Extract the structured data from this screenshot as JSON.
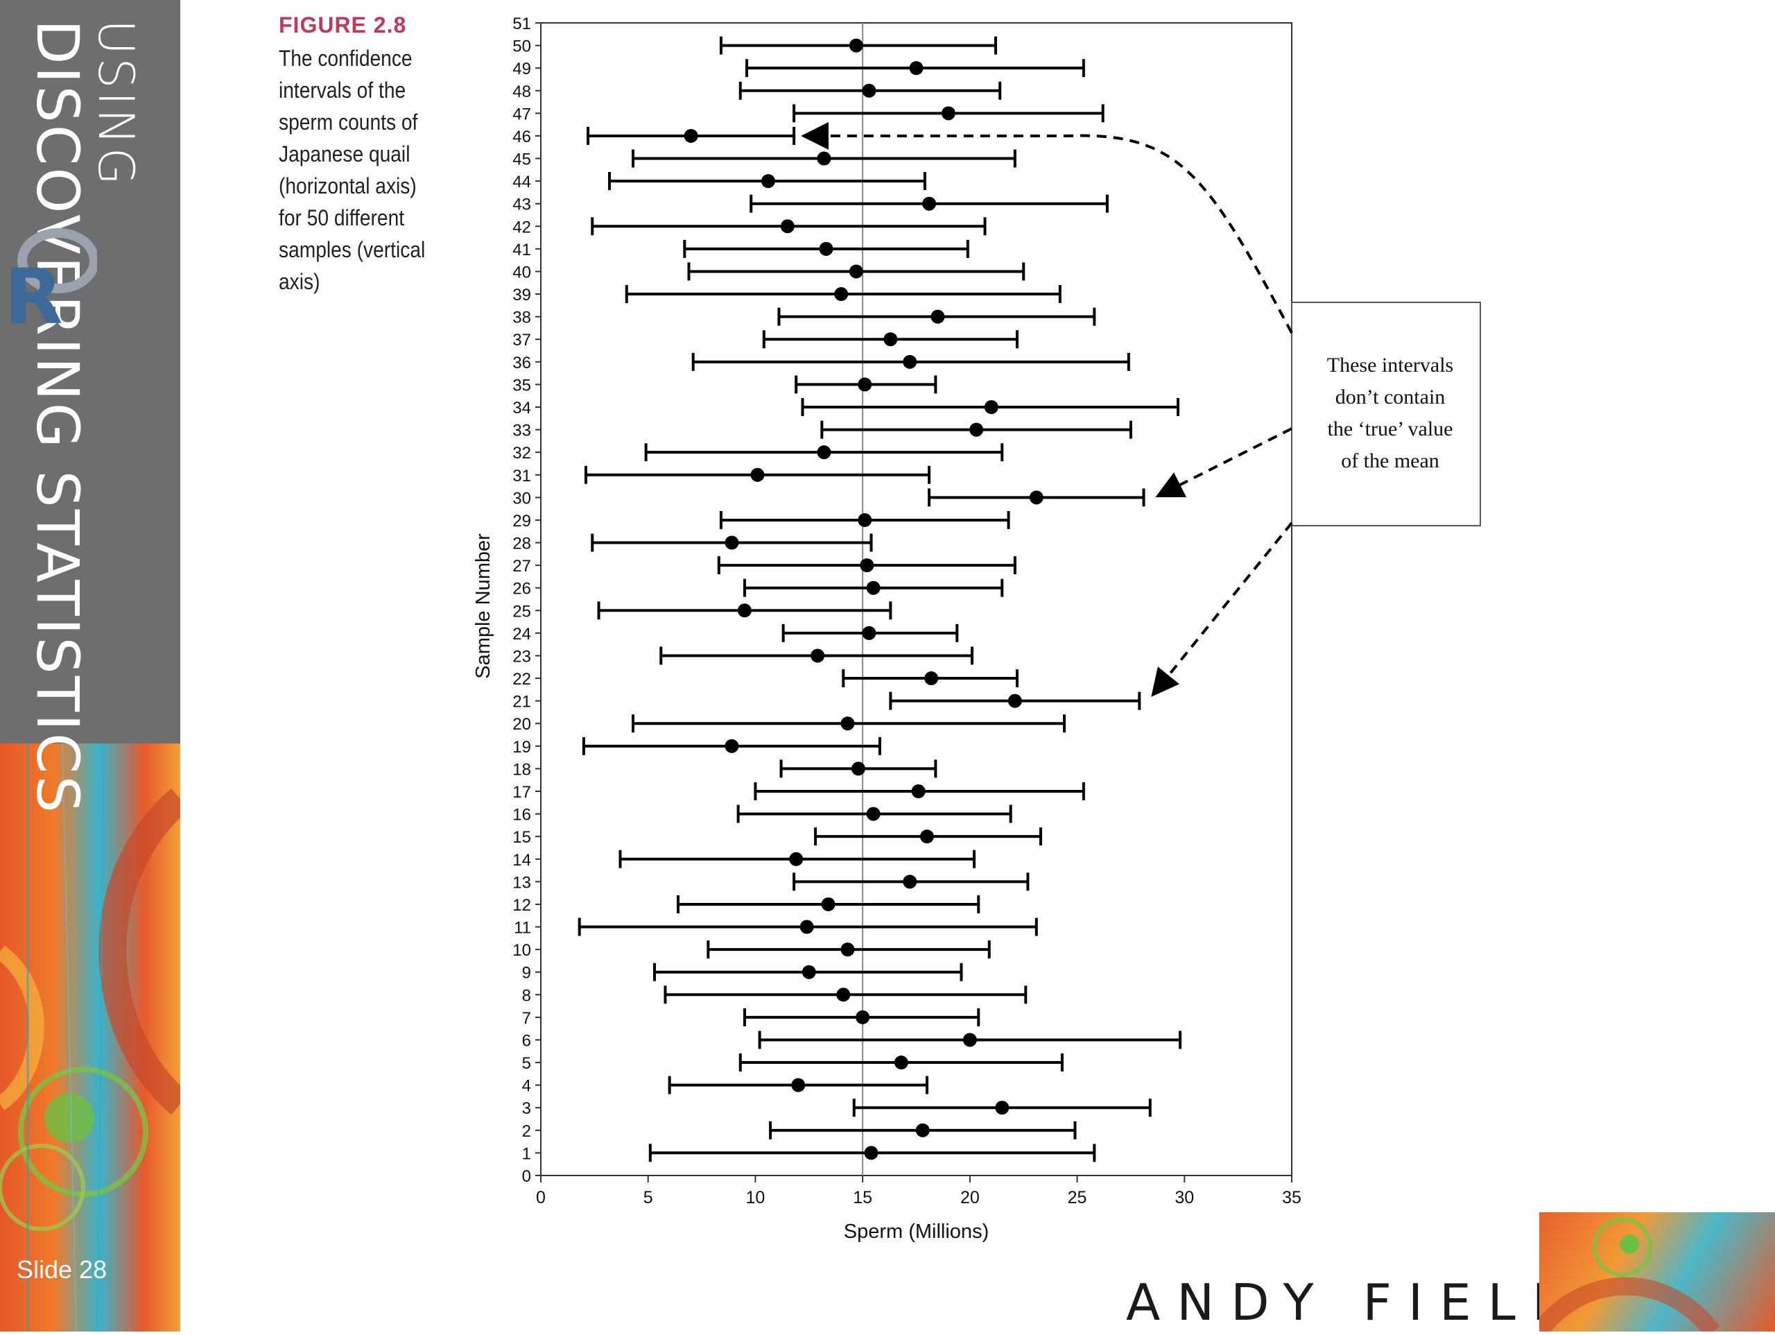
{
  "book": {
    "title_line1": "DISCOVERING STATISTICS",
    "title_line2": "USING",
    "slide": "Slide 28",
    "author": "ANDY FIELD"
  },
  "figure": {
    "label": "FIGURE 2.8",
    "caption": "The confidence intervals of the sperm counts of Japanese quail (horizontal axis) for 50 different samples (vertical axis)"
  },
  "colors": {
    "grey_strip": "#6d6e70",
    "figure_label": "#c0395a",
    "marks": "#000000"
  },
  "chart_data": {
    "type": "errorbar",
    "xlabel": "Sperm (Millions)",
    "ylabel": "Sample Number",
    "xlim": [
      0,
      35
    ],
    "ylim": [
      0,
      51
    ],
    "xticks": [
      0,
      5,
      10,
      15,
      20,
      25,
      30,
      35
    ],
    "reference_line_x": 15,
    "annotation": "These intervals don’t contain the ‘true’ value of the mean",
    "annotated_samples": [
      46,
      30,
      21
    ],
    "samples": [
      {
        "n": 1,
        "mean": 15.4,
        "lower": 5.1,
        "upper": 25.8
      },
      {
        "n": 2,
        "mean": 17.8,
        "lower": 10.7,
        "upper": 24.9
      },
      {
        "n": 3,
        "mean": 21.5,
        "lower": 14.6,
        "upper": 28.4
      },
      {
        "n": 4,
        "mean": 12.0,
        "lower": 6.0,
        "upper": 18.0
      },
      {
        "n": 5,
        "mean": 16.8,
        "lower": 9.3,
        "upper": 24.3
      },
      {
        "n": 6,
        "mean": 20.0,
        "lower": 10.2,
        "upper": 29.8
      },
      {
        "n": 7,
        "mean": 15.0,
        "lower": 9.5,
        "upper": 20.4
      },
      {
        "n": 8,
        "mean": 14.1,
        "lower": 5.8,
        "upper": 22.6
      },
      {
        "n": 9,
        "mean": 12.5,
        "lower": 5.3,
        "upper": 19.6
      },
      {
        "n": 10,
        "mean": 14.3,
        "lower": 7.8,
        "upper": 20.9
      },
      {
        "n": 11,
        "mean": 12.4,
        "lower": 1.8,
        "upper": 23.1
      },
      {
        "n": 12,
        "mean": 13.4,
        "lower": 6.4,
        "upper": 20.4
      },
      {
        "n": 13,
        "mean": 17.2,
        "lower": 11.8,
        "upper": 22.7
      },
      {
        "n": 14,
        "mean": 11.9,
        "lower": 3.7,
        "upper": 20.2
      },
      {
        "n": 15,
        "mean": 18.0,
        "lower": 12.8,
        "upper": 23.3
      },
      {
        "n": 16,
        "mean": 15.5,
        "lower": 9.2,
        "upper": 21.9
      },
      {
        "n": 17,
        "mean": 17.6,
        "lower": 10.0,
        "upper": 25.3
      },
      {
        "n": 18,
        "mean": 14.8,
        "lower": 11.2,
        "upper": 18.4
      },
      {
        "n": 19,
        "mean": 8.9,
        "lower": 2.0,
        "upper": 15.8
      },
      {
        "n": 20,
        "mean": 14.3,
        "lower": 4.3,
        "upper": 24.4
      },
      {
        "n": 21,
        "mean": 22.1,
        "lower": 16.3,
        "upper": 27.9
      },
      {
        "n": 22,
        "mean": 18.2,
        "lower": 14.1,
        "upper": 22.2
      },
      {
        "n": 23,
        "mean": 12.9,
        "lower": 5.6,
        "upper": 20.1
      },
      {
        "n": 24,
        "mean": 15.3,
        "lower": 11.3,
        "upper": 19.4
      },
      {
        "n": 25,
        "mean": 9.5,
        "lower": 2.7,
        "upper": 16.3
      },
      {
        "n": 26,
        "mean": 15.5,
        "lower": 9.5,
        "upper": 21.5
      },
      {
        "n": 27,
        "mean": 15.2,
        "lower": 8.3,
        "upper": 22.1
      },
      {
        "n": 28,
        "mean": 8.9,
        "lower": 2.4,
        "upper": 15.4
      },
      {
        "n": 29,
        "mean": 15.1,
        "lower": 8.4,
        "upper": 21.8
      },
      {
        "n": 30,
        "mean": 23.1,
        "lower": 18.1,
        "upper": 28.1
      },
      {
        "n": 31,
        "mean": 10.1,
        "lower": 2.1,
        "upper": 18.1
      },
      {
        "n": 32,
        "mean": 13.2,
        "lower": 4.9,
        "upper": 21.5
      },
      {
        "n": 33,
        "mean": 20.3,
        "lower": 13.1,
        "upper": 27.5
      },
      {
        "n": 34,
        "mean": 21.0,
        "lower": 12.2,
        "upper": 29.7
      },
      {
        "n": 35,
        "mean": 15.1,
        "lower": 11.9,
        "upper": 18.4
      },
      {
        "n": 36,
        "mean": 17.2,
        "lower": 7.1,
        "upper": 27.4
      },
      {
        "n": 37,
        "mean": 16.3,
        "lower": 10.4,
        "upper": 22.2
      },
      {
        "n": 38,
        "mean": 18.5,
        "lower": 11.1,
        "upper": 25.8
      },
      {
        "n": 39,
        "mean": 14.0,
        "lower": 4.0,
        "upper": 24.2
      },
      {
        "n": 40,
        "mean": 14.7,
        "lower": 6.9,
        "upper": 22.5
      },
      {
        "n": 41,
        "mean": 13.3,
        "lower": 6.7,
        "upper": 19.9
      },
      {
        "n": 42,
        "mean": 11.5,
        "lower": 2.4,
        "upper": 20.7
      },
      {
        "n": 43,
        "mean": 18.1,
        "lower": 9.8,
        "upper": 26.4
      },
      {
        "n": 44,
        "mean": 10.6,
        "lower": 3.2,
        "upper": 17.9
      },
      {
        "n": 45,
        "mean": 13.2,
        "lower": 4.3,
        "upper": 22.1
      },
      {
        "n": 46,
        "mean": 7.0,
        "lower": 2.2,
        "upper": 11.8
      },
      {
        "n": 47,
        "mean": 19.0,
        "lower": 11.8,
        "upper": 26.2
      },
      {
        "n": 48,
        "mean": 15.3,
        "lower": 9.3,
        "upper": 21.4
      },
      {
        "n": 49,
        "mean": 17.5,
        "lower": 9.6,
        "upper": 25.3
      },
      {
        "n": 50,
        "mean": 14.7,
        "lower": 8.4,
        "upper": 21.2
      }
    ]
  }
}
